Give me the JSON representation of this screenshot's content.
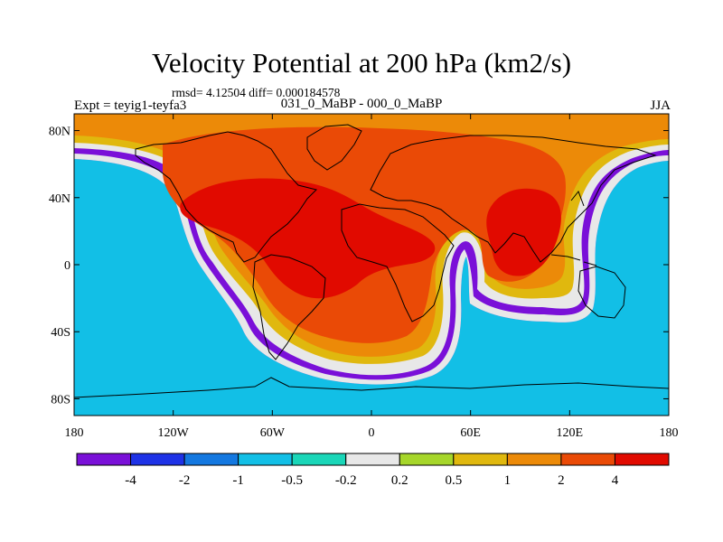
{
  "title": "Velocity Potential at 200 hPa (km2/s)",
  "stats": "rmsd= 4.12504  diff= 0.000184578",
  "left_label": "Expt = teyig1-teyfa3",
  "center_label": "031_0_MaBP - 000_0_MaBP",
  "right_label": "JJA",
  "lat_ticks": [
    {
      "label": "80N",
      "value": 80
    },
    {
      "label": "40N",
      "value": 40
    },
    {
      "label": "0",
      "value": 0
    },
    {
      "label": "40S",
      "value": -40
    },
    {
      "label": "80S",
      "value": -80
    }
  ],
  "lon_ticks": [
    {
      "label": "180",
      "value": -180
    },
    {
      "label": "120W",
      "value": -120
    },
    {
      "label": "60W",
      "value": -60
    },
    {
      "label": "0",
      "value": 0
    },
    {
      "label": "60E",
      "value": 60
    },
    {
      "label": "120E",
      "value": 120
    },
    {
      "label": "180",
      "value": 180
    }
  ],
  "colorbar": {
    "colors": [
      "#7a10d8",
      "#1e32e6",
      "#1478e0",
      "#12bfe6",
      "#1ad6b8",
      "#e8e8e8",
      "#a6d62a",
      "#e0b80e",
      "#ec8a08",
      "#ea4a06",
      "#e10a00"
    ],
    "labels": [
      "-4",
      "-2",
      "-1",
      "-0.5",
      "-0.2",
      "0.2",
      "0.5",
      "1",
      "2",
      "4"
    ]
  },
  "colors": {
    "purple": "#7a10d8",
    "blue_dark": "#1e32e6",
    "blue": "#1478e0",
    "cyan": "#12bfe6",
    "teal": "#1ad6b8",
    "white": "#e8e8e8",
    "green": "#a6d62a",
    "yellow": "#e0b80e",
    "orange": "#ec8a08",
    "red_orange": "#ea4a06",
    "red": "#e10a00"
  }
}
